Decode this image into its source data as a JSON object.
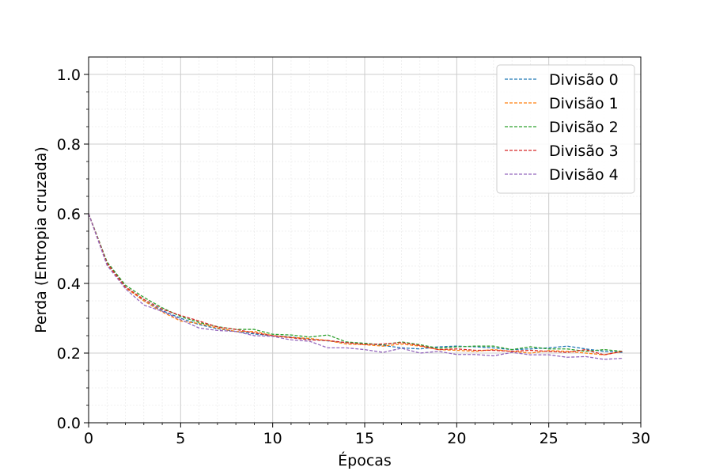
{
  "chart_data": {
    "type": "line",
    "title": "",
    "xlabel": "Épocas",
    "ylabel": "Perda (Entropia cruzada)",
    "xlim": [
      0,
      30
    ],
    "ylim": [
      0,
      1.05
    ],
    "xticks": [
      "0",
      "5",
      "10",
      "15",
      "20",
      "25",
      "30"
    ],
    "yticks": [
      "0.0",
      "0.2",
      "0.4",
      "0.6",
      "0.8",
      "1.0"
    ],
    "grid": true,
    "minor_grid": true,
    "legend_position": "top-right",
    "line_style": "dashed",
    "x": [
      0,
      1,
      2,
      3,
      4,
      5,
      6,
      7,
      8,
      9,
      10,
      11,
      12,
      13,
      14,
      15,
      16,
      17,
      18,
      19,
      20,
      21,
      22,
      23,
      24,
      25,
      26,
      27,
      28,
      29
    ],
    "series": [
      {
        "name": "Divisão 0",
        "color": "#1f77b4",
        "values": [
          0.6,
          0.46,
          0.39,
          0.35,
          0.322,
          0.3,
          0.282,
          0.27,
          0.262,
          0.255,
          0.25,
          0.246,
          0.24,
          0.235,
          0.23,
          0.228,
          0.222,
          0.215,
          0.212,
          0.218,
          0.22,
          0.218,
          0.215,
          0.21,
          0.212,
          0.215,
          0.22,
          0.212,
          0.205,
          0.202
        ]
      },
      {
        "name": "Divisão 1",
        "color": "#ff7f0e",
        "values": [
          0.6,
          0.455,
          0.388,
          0.35,
          0.318,
          0.292,
          0.285,
          0.272,
          0.262,
          0.262,
          0.25,
          0.245,
          0.242,
          0.236,
          0.226,
          0.224,
          0.22,
          0.226,
          0.22,
          0.21,
          0.208,
          0.205,
          0.21,
          0.205,
          0.2,
          0.207,
          0.205,
          0.2,
          0.195,
          0.205
        ]
      },
      {
        "name": "Divisão 2",
        "color": "#2ca02c",
        "values": [
          0.6,
          0.462,
          0.395,
          0.36,
          0.33,
          0.305,
          0.288,
          0.276,
          0.268,
          0.268,
          0.254,
          0.252,
          0.246,
          0.252,
          0.232,
          0.228,
          0.224,
          0.232,
          0.224,
          0.214,
          0.218,
          0.22,
          0.22,
          0.21,
          0.218,
          0.212,
          0.212,
          0.205,
          0.21,
          0.205
        ]
      },
      {
        "name": "Divisão 3",
        "color": "#d62728",
        "values": [
          0.6,
          0.458,
          0.39,
          0.354,
          0.326,
          0.308,
          0.292,
          0.275,
          0.268,
          0.258,
          0.25,
          0.244,
          0.238,
          0.236,
          0.23,
          0.225,
          0.226,
          0.23,
          0.222,
          0.21,
          0.212,
          0.208,
          0.208,
          0.205,
          0.208,
          0.205,
          0.202,
          0.21,
          0.195,
          0.205
        ]
      },
      {
        "name": "Divisão 4",
        "color": "#9467bd",
        "values": [
          0.6,
          0.452,
          0.385,
          0.338,
          0.32,
          0.296,
          0.272,
          0.265,
          0.262,
          0.25,
          0.248,
          0.238,
          0.234,
          0.215,
          0.215,
          0.21,
          0.202,
          0.214,
          0.2,
          0.205,
          0.196,
          0.196,
          0.192,
          0.202,
          0.195,
          0.195,
          0.188,
          0.19,
          0.182,
          0.185
        ]
      }
    ]
  }
}
